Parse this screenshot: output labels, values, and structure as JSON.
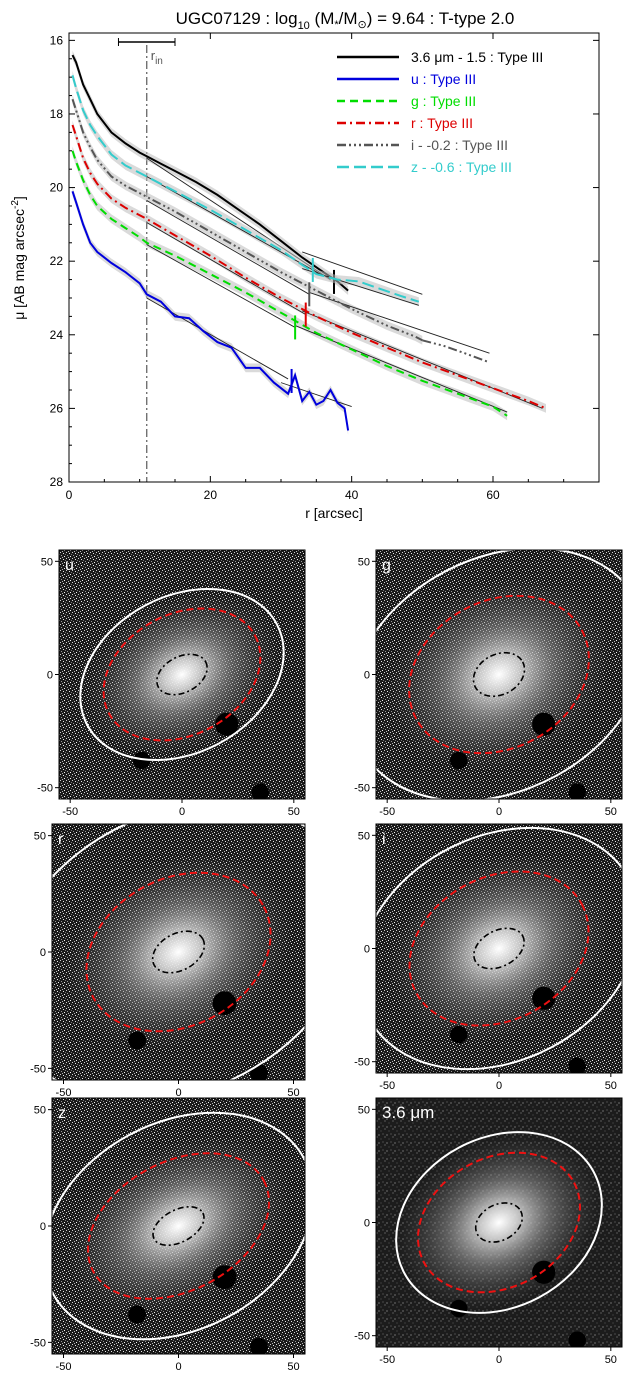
{
  "chart_data": [
    {
      "type": "line",
      "title": "UGC07129 : log",
      "title_sub": "10",
      "title_mid": " (M",
      "title_star": "*",
      "title_over": "/M",
      "title_sun": "⊙",
      "title_end": ") = 9.64 : T-type 2.0",
      "xlabel": "r [arcsec]",
      "ylabel_main": "μ [AB mag arcsec",
      "ylabel_sup": "-2",
      "ylabel_end": "]",
      "xlim": [
        0,
        75
      ],
      "ylim": [
        28,
        15.8
      ],
      "y_inverted": true,
      "xticks": [
        0,
        20,
        40,
        60
      ],
      "yticks": [
        16,
        18,
        20,
        22,
        24,
        26,
        28
      ],
      "r_in": {
        "value": 11,
        "label": "r",
        "label_sub": "in",
        "bar_range": [
          7,
          15
        ]
      },
      "legend_position": "top-right",
      "series": [
        {
          "name": "3.6 μm - 1.5 : Type III",
          "color": "#000000",
          "dash": "",
          "x": [
            0.5,
            1,
            2,
            3,
            4,
            6,
            8,
            10,
            11,
            13,
            15,
            18,
            21,
            24,
            27,
            30,
            33,
            36,
            38,
            39.5
          ],
          "y": [
            16.4,
            16.6,
            17.2,
            17.6,
            18.0,
            18.5,
            18.8,
            19.05,
            19.15,
            19.35,
            19.55,
            19.85,
            20.2,
            20.6,
            21.0,
            21.45,
            21.9,
            22.3,
            22.55,
            22.8
          ],
          "fit_inner": [
            [
              11,
              19.2
            ],
            [
              37,
              22.5
            ]
          ],
          "fit_outer": [
            [
              33,
              21.75
            ],
            [
              50,
              22.9
            ]
          ],
          "break": 37.5
        },
        {
          "name": "u : Type III",
          "color": "#0000dd",
          "dash": "",
          "x": [
            0.5,
            1,
            2,
            3,
            4,
            6,
            8,
            10,
            11,
            13,
            15,
            17,
            19,
            21,
            23,
            25,
            27,
            29,
            31,
            32,
            33,
            34,
            35,
            36,
            37,
            38,
            39,
            39.5
          ],
          "y": [
            20.1,
            20.4,
            21.0,
            21.5,
            21.75,
            22.05,
            22.3,
            22.6,
            22.9,
            23.1,
            23.5,
            23.55,
            23.9,
            24.2,
            24.35,
            24.9,
            24.9,
            25.3,
            25.6,
            25.1,
            25.8,
            25.55,
            25.9,
            25.8,
            25.5,
            25.85,
            26.0,
            26.6
          ],
          "fit_inner": [
            [
              11,
              23.0
            ],
            [
              31,
              25.2
            ]
          ],
          "fit_outer": [
            [
              30,
              25.3
            ],
            [
              40,
              25.95
            ]
          ],
          "break": 31.5
        },
        {
          "name": "g : Type III",
          "color": "#00dd00",
          "dash": "8 5",
          "x": [
            0.5,
            1,
            2,
            3,
            4,
            6,
            8,
            10,
            11,
            15,
            20,
            25,
            30,
            35,
            40,
            45,
            50,
            55,
            60,
            62
          ],
          "y": [
            19.0,
            19.3,
            19.8,
            20.2,
            20.5,
            20.85,
            21.1,
            21.35,
            21.5,
            21.85,
            22.35,
            22.85,
            23.4,
            23.95,
            24.4,
            24.85,
            25.25,
            25.6,
            25.95,
            26.2
          ],
          "fit_inner": [
            [
              11,
              21.55
            ],
            [
              32,
              23.8
            ]
          ],
          "fit_outer": [
            [
              32,
              23.75
            ],
            [
              62,
              26.1
            ]
          ],
          "break": 32
        },
        {
          "name": "r : Type III",
          "color": "#dd0000",
          "dash": "9 4 2 4",
          "x": [
            0.5,
            1,
            2,
            3,
            4,
            6,
            8,
            10,
            11,
            15,
            20,
            25,
            30,
            35,
            40,
            45,
            50,
            55,
            60,
            65,
            67.5
          ],
          "y": [
            18.3,
            18.6,
            19.2,
            19.6,
            19.9,
            20.3,
            20.55,
            20.75,
            20.85,
            21.3,
            21.85,
            22.45,
            23.0,
            23.5,
            23.95,
            24.35,
            24.75,
            25.1,
            25.45,
            25.8,
            26.0
          ],
          "fit_inner": [
            [
              11,
              20.95
            ],
            [
              33.5,
              23.45
            ]
          ],
          "fit_outer": [
            [
              33,
              23.35
            ],
            [
              67,
              26.0
            ]
          ],
          "break": 33.5
        },
        {
          "name": "i - -0.2 : Type III",
          "color": "#555555",
          "dash": "9 3 2 3 2 3 2 3",
          "x": [
            0.5,
            1,
            2,
            3,
            4,
            6,
            8,
            10,
            11,
            15,
            20,
            25,
            30,
            35,
            40,
            45,
            49,
            50
          ],
          "y": [
            17.6,
            17.9,
            18.5,
            18.9,
            19.25,
            19.7,
            19.95,
            20.15,
            20.25,
            20.65,
            21.2,
            21.75,
            22.3,
            22.8,
            23.3,
            23.75,
            24.05,
            24.15
          ],
          "fit_inner": [
            [
              11,
              20.35
            ],
            [
              34,
              22.9
            ]
          ],
          "fit_outer": [
            [
              34,
              22.85
            ],
            [
              59.5,
              24.5
            ]
          ],
          "break": 34,
          "x_tail": [
            50,
            53,
            56,
            59.5
          ],
          "y_tail": [
            24.15,
            24.3,
            24.5,
            24.75
          ]
        },
        {
          "name": "z - -0.6 : Type III",
          "color": "#33cccc",
          "dash": "12 5",
          "x": [
            0.5,
            1,
            2,
            3,
            4,
            6,
            8,
            10,
            11,
            15,
            20,
            25,
            30,
            33,
            35,
            38,
            41,
            44,
            47,
            49.5
          ],
          "y": [
            16.95,
            17.3,
            17.9,
            18.3,
            18.6,
            19.1,
            19.4,
            19.6,
            19.7,
            20.1,
            20.6,
            21.15,
            21.7,
            22.1,
            22.35,
            22.5,
            22.55,
            22.75,
            22.95,
            23.1
          ],
          "fit_inner": [
            [
              11,
              19.7
            ],
            [
              36,
              22.4
            ]
          ],
          "fit_outer": [
            [
              33,
              22.2
            ],
            [
              49.5,
              23.2
            ]
          ],
          "break": 34.5
        }
      ]
    },
    {
      "type": "image-grid",
      "xlim": [
        -55,
        55
      ],
      "ylim": [
        -55,
        55
      ],
      "xticks": [
        -50,
        0,
        50
      ],
      "yticks": [
        -50,
        0,
        50
      ],
      "panels": [
        {
          "label": "u",
          "white_a": 48,
          "white_b": 35,
          "red_a": 37,
          "red_b": 27,
          "inner_a": 12,
          "inner_b": 8,
          "pa_deg": 28
        },
        {
          "label": "g",
          "white_a": 70,
          "white_b": 52,
          "red_a": 42,
          "red_b": 33,
          "inner_a": 12,
          "inner_b": 9,
          "pa_deg": 28
        },
        {
          "label": "r",
          "white_a": 80,
          "white_b": 60,
          "red_a": 42,
          "red_b": 32,
          "inner_a": 12,
          "inner_b": 8,
          "pa_deg": 28
        },
        {
          "label": "i",
          "white_a": 66,
          "white_b": 50,
          "red_a": 42,
          "red_b": 32,
          "inner_a": 12,
          "inner_b": 8,
          "pa_deg": 28
        },
        {
          "label": "z",
          "white_a": 62,
          "white_b": 45,
          "red_a": 42,
          "red_b": 28,
          "inner_a": 12,
          "inner_b": 7,
          "pa_deg": 28
        },
        {
          "label": "3.6 μm",
          "white_a": 48,
          "white_b": 38,
          "red_a": 38,
          "red_b": 29,
          "inner_a": 11,
          "inner_b": 8,
          "pa_deg": 28
        }
      ]
    }
  ]
}
